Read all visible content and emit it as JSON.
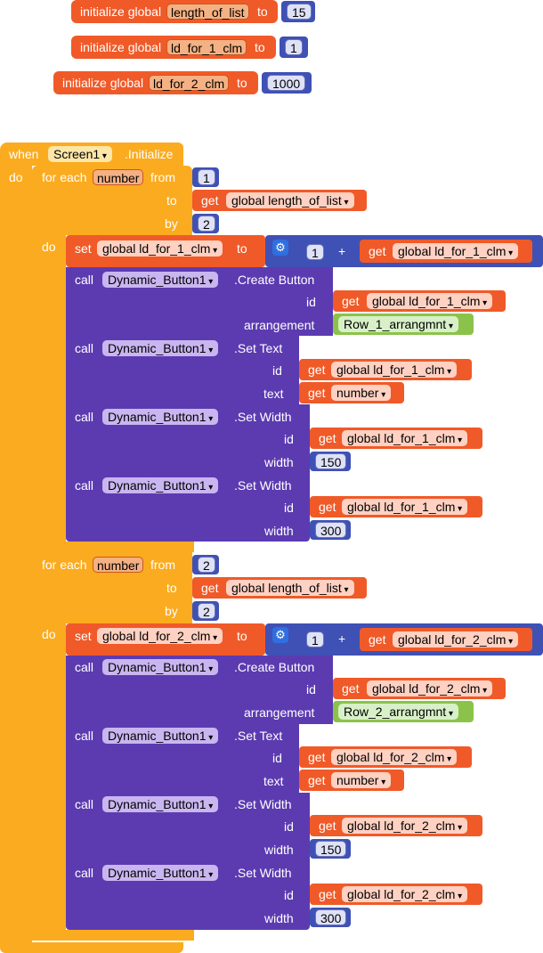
{
  "globals": [
    {
      "prefix": "initialize global",
      "name": "length_of_list",
      "to": "to",
      "value": "15"
    },
    {
      "prefix": "initialize global",
      "name": "ld_for_1_clm",
      "to": "to",
      "value": "1"
    },
    {
      "prefix": "initialize global",
      "name": "ld_for_2_clm",
      "to": "to",
      "value": "1000"
    }
  ],
  "event": {
    "when": "when",
    "component": "Screen1",
    "event": ".Initialize",
    "do": "do"
  },
  "loops": [
    {
      "for_each": "for each",
      "var": "number",
      "from": "from",
      "from_value": "1",
      "to": "to",
      "get": "get",
      "to_var": "global length_of_list",
      "by": "by",
      "by_value": "2",
      "do": "do",
      "set": "set",
      "set_var": "global ld_for_1_clm",
      "set_to": "to",
      "plus": "+",
      "add_value": "1",
      "add_var": "global ld_for_1_clm",
      "create": {
        "call": "call",
        "component": "Dynamic_Button1",
        "method": ".Create Button",
        "id_label": "id",
        "id_var": "global ld_for_1_clm",
        "arr_label": "arrangement",
        "arr_value": "Row_1_arrangmnt"
      },
      "settext": {
        "call": "call",
        "component": "Dynamic_Button1",
        "method": ".Set Text",
        "id_label": "id",
        "id_var": "global ld_for_1_clm",
        "text_label": "text",
        "text_var": "number"
      },
      "width1": {
        "call": "call",
        "component": "Dynamic_Button1",
        "method": ".Set Width",
        "id_label": "id",
        "id_var": "global ld_for_1_clm",
        "w_label": "width",
        "w_value": "150"
      },
      "width2": {
        "call": "call",
        "component": "Dynamic_Button1",
        "method": ".Set Width",
        "id_label": "id",
        "id_var": "global ld_for_1_clm",
        "w_label": "width",
        "w_value": "300"
      }
    },
    {
      "for_each": "for each",
      "var": "number",
      "from": "from",
      "from_value": "2",
      "to": "to",
      "get": "get",
      "to_var": "global length_of_list",
      "by": "by",
      "by_value": "2",
      "do": "do",
      "set": "set",
      "set_var": "global ld_for_2_clm",
      "set_to": "to",
      "plus": "+",
      "add_value": "1",
      "add_var": "global ld_for_2_clm",
      "create": {
        "call": "call",
        "component": "Dynamic_Button1",
        "method": ".Create Button",
        "id_label": "id",
        "id_var": "global ld_for_2_clm",
        "arr_label": "arrangement",
        "arr_value": "Row_2_arrangmnt"
      },
      "settext": {
        "call": "call",
        "component": "Dynamic_Button1",
        "method": ".Set Text",
        "id_label": "id",
        "id_var": "global ld_for_2_clm",
        "text_label": "text",
        "text_var": "number"
      },
      "width1": {
        "call": "call",
        "component": "Dynamic_Button1",
        "method": ".Set Width",
        "id_label": "id",
        "id_var": "global ld_for_2_clm",
        "w_label": "width",
        "w_value": "150"
      },
      "width2": {
        "call": "call",
        "component": "Dynamic_Button1",
        "method": ".Set Width",
        "id_label": "id",
        "id_var": "global ld_for_2_clm",
        "w_label": "width",
        "w_value": "300"
      }
    }
  ],
  "colors": {
    "orange": "#f05a28",
    "yellow": "#fbab1f",
    "purple": "#5c3bb1",
    "blue": "#3f51b5",
    "green": "#8bc34a"
  }
}
